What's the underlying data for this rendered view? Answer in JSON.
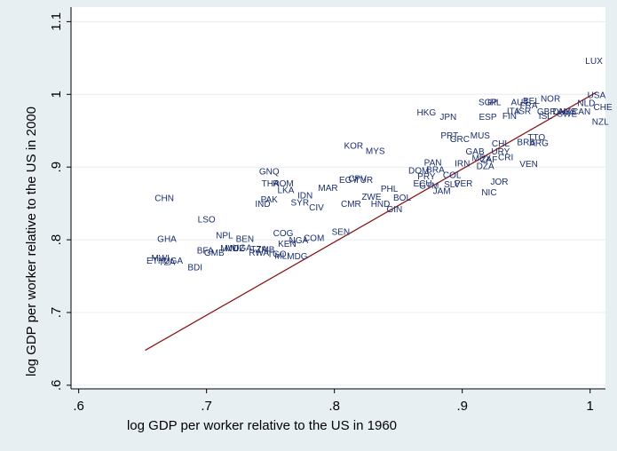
{
  "chart_data": {
    "type": "scatter",
    "xlabel": "log GDP per worker relative to the US in 1960",
    "ylabel": "log GDP per worker relative to the US in 2000",
    "xlim": [
      0.594,
      1.012
    ],
    "ylim": [
      0.595,
      1.12
    ],
    "xticks": [
      0.6,
      0.7,
      0.8,
      0.9,
      1.0
    ],
    "xtick_labels": [
      ".6",
      ".7",
      ".8",
      ".9",
      "1"
    ],
    "yticks": [
      0.6,
      0.7,
      0.8,
      0.9,
      1.0,
      1.1
    ],
    "ytick_labels": [
      ".6",
      ".7",
      ".8",
      ".9",
      "1",
      "1.1"
    ],
    "grid": "horizontal",
    "marker": "country-code labels",
    "points": [
      {
        "label": "LUX",
        "x": 1.003,
        "y": 1.047
      },
      {
        "label": "USA",
        "x": 1.005,
        "y": 1.0
      },
      {
        "label": "CHE",
        "x": 1.01,
        "y": 0.983
      },
      {
        "label": "NLD",
        "x": 0.997,
        "y": 0.989
      },
      {
        "label": "NZL",
        "x": 1.008,
        "y": 0.963
      },
      {
        "label": "NOR",
        "x": 0.969,
        "y": 0.995
      },
      {
        "label": "BEL",
        "x": 0.954,
        "y": 0.992
      },
      {
        "label": "AUT",
        "x": 0.945,
        "y": 0.99
      },
      {
        "label": "FRA",
        "x": 0.952,
        "y": 0.986
      },
      {
        "label": "ITA",
        "x": 0.94,
        "y": 0.978
      },
      {
        "label": "ISR",
        "x": 0.948,
        "y": 0.978
      },
      {
        "label": "GBR",
        "x": 0.966,
        "y": 0.977
      },
      {
        "label": "DNK",
        "x": 0.978,
        "y": 0.977
      },
      {
        "label": "AUS",
        "x": 0.982,
        "y": 0.977
      },
      {
        "label": "CAN",
        "x": 0.993,
        "y": 0.977
      },
      {
        "label": "FIN",
        "x": 0.937,
        "y": 0.971
      },
      {
        "label": "ISL",
        "x": 0.965,
        "y": 0.971
      },
      {
        "label": "SWE",
        "x": 0.982,
        "y": 0.974
      },
      {
        "label": "SGP",
        "x": 0.92,
        "y": 0.99
      },
      {
        "label": "IRL",
        "x": 0.925,
        "y": 0.99
      },
      {
        "label": "HKG",
        "x": 0.872,
        "y": 0.976
      },
      {
        "label": "JPN",
        "x": 0.889,
        "y": 0.97
      },
      {
        "label": "ESP",
        "x": 0.92,
        "y": 0.97
      },
      {
        "label": "PRT",
        "x": 0.89,
        "y": 0.944
      },
      {
        "label": "GRC",
        "x": 0.898,
        "y": 0.939
      },
      {
        "label": "MUS",
        "x": 0.914,
        "y": 0.944
      },
      {
        "label": "TTO",
        "x": 0.958,
        "y": 0.942
      },
      {
        "label": "BRB",
        "x": 0.95,
        "y": 0.935
      },
      {
        "label": "ARG",
        "x": 0.96,
        "y": 0.934
      },
      {
        "label": "CHL",
        "x": 0.93,
        "y": 0.933
      },
      {
        "label": "GAB",
        "x": 0.91,
        "y": 0.922
      },
      {
        "label": "URY",
        "x": 0.93,
        "y": 0.922
      },
      {
        "label": "MEX",
        "x": 0.915,
        "y": 0.913
      },
      {
        "label": "ZAF",
        "x": 0.921,
        "y": 0.911
      },
      {
        "label": "CRI",
        "x": 0.934,
        "y": 0.914
      },
      {
        "label": "DZA",
        "x": 0.918,
        "y": 0.902
      },
      {
        "label": "VEN",
        "x": 0.952,
        "y": 0.905
      },
      {
        "label": "IRN",
        "x": 0.9,
        "y": 0.906
      },
      {
        "label": "KOR",
        "x": 0.815,
        "y": 0.93
      },
      {
        "label": "MYS",
        "x": 0.832,
        "y": 0.923
      },
      {
        "label": "PAN",
        "x": 0.877,
        "y": 0.907
      },
      {
        "label": "DOM",
        "x": 0.866,
        "y": 0.896
      },
      {
        "label": "BRA",
        "x": 0.879,
        "y": 0.897
      },
      {
        "label": "COL",
        "x": 0.892,
        "y": 0.89
      },
      {
        "label": "PRY",
        "x": 0.872,
        "y": 0.888
      },
      {
        "label": "ECU",
        "x": 0.869,
        "y": 0.878
      },
      {
        "label": "GTM",
        "x": 0.874,
        "y": 0.875
      },
      {
        "label": "SLV",
        "x": 0.892,
        "y": 0.877
      },
      {
        "label": "PER",
        "x": 0.901,
        "y": 0.878
      },
      {
        "label": "JOR",
        "x": 0.929,
        "y": 0.881
      },
      {
        "label": "JAM",
        "x": 0.884,
        "y": 0.868
      },
      {
        "label": "NIC",
        "x": 0.921,
        "y": 0.866
      },
      {
        "label": "EGY",
        "x": 0.811,
        "y": 0.883
      },
      {
        "label": "CPV",
        "x": 0.818,
        "y": 0.885
      },
      {
        "label": "TUR",
        "x": 0.823,
        "y": 0.883
      },
      {
        "label": "MAR",
        "x": 0.795,
        "y": 0.872
      },
      {
        "label": "PHL",
        "x": 0.843,
        "y": 0.871
      },
      {
        "label": "ZWE",
        "x": 0.829,
        "y": 0.86
      },
      {
        "label": "BOL",
        "x": 0.853,
        "y": 0.859
      },
      {
        "label": "CMR",
        "x": 0.813,
        "y": 0.85
      },
      {
        "label": "HND",
        "x": 0.836,
        "y": 0.85
      },
      {
        "label": "GIN",
        "x": 0.847,
        "y": 0.843
      },
      {
        "label": "GNQ",
        "x": 0.749,
        "y": 0.895
      },
      {
        "label": "THA",
        "x": 0.75,
        "y": 0.878
      },
      {
        "label": "ROM",
        "x": 0.76,
        "y": 0.878
      },
      {
        "label": "LKA",
        "x": 0.762,
        "y": 0.869
      },
      {
        "label": "IDN",
        "x": 0.777,
        "y": 0.862
      },
      {
        "label": "PAK",
        "x": 0.749,
        "y": 0.856
      },
      {
        "label": "IND",
        "x": 0.744,
        "y": 0.85
      },
      {
        "label": "SYR",
        "x": 0.773,
        "y": 0.852
      },
      {
        "label": "CIV",
        "x": 0.786,
        "y": 0.845
      },
      {
        "label": "CHN",
        "x": 0.667,
        "y": 0.858
      },
      {
        "label": "LSO",
        "x": 0.7,
        "y": 0.829
      },
      {
        "label": "SEN",
        "x": 0.805,
        "y": 0.812
      },
      {
        "label": "NPL",
        "x": 0.714,
        "y": 0.807
      },
      {
        "label": "BEN",
        "x": 0.73,
        "y": 0.802
      },
      {
        "label": "COG",
        "x": 0.76,
        "y": 0.81
      },
      {
        "label": "COM",
        "x": 0.784,
        "y": 0.803
      },
      {
        "label": "NGA",
        "x": 0.772,
        "y": 0.8
      },
      {
        "label": "KEN",
        "x": 0.763,
        "y": 0.795
      },
      {
        "label": "GHA",
        "x": 0.669,
        "y": 0.802
      },
      {
        "label": "UGA",
        "x": 0.728,
        "y": 0.79
      },
      {
        "label": "MWI",
        "x": 0.718,
        "y": 0.789
      },
      {
        "label": "MOZ",
        "x": 0.722,
        "y": 0.789
      },
      {
        "label": "BFA",
        "x": 0.699,
        "y": 0.786
      },
      {
        "label": "GMB",
        "x": 0.706,
        "y": 0.783
      },
      {
        "label": "TZA",
        "x": 0.741,
        "y": 0.788
      },
      {
        "label": "ZMB",
        "x": 0.746,
        "y": 0.787
      },
      {
        "label": "RWA",
        "x": 0.741,
        "y": 0.783
      },
      {
        "label": "TGO",
        "x": 0.755,
        "y": 0.781
      },
      {
        "label": "MLI",
        "x": 0.759,
        "y": 0.779
      },
      {
        "label": "MDG",
        "x": 0.771,
        "y": 0.778
      },
      {
        "label": "MWI",
        "x": 0.664,
        "y": 0.776
      },
      {
        "label": "ETH",
        "x": 0.66,
        "y": 0.772
      },
      {
        "label": "TZA",
        "x": 0.669,
        "y": 0.77
      },
      {
        "label": "UGA",
        "x": 0.674,
        "y": 0.772
      },
      {
        "label": "BDI",
        "x": 0.691,
        "y": 0.763
      }
    ],
    "fit_line": {
      "x": [
        0.652,
        1.005
      ],
      "y": [
        0.648,
        1.003
      ],
      "color": "#8b1a1a"
    },
    "colors": {
      "background": "#e8eff3",
      "plot_area": "#ffffff",
      "labels": "#1a2e6e",
      "fit": "#8b1a1a",
      "grid": "#e6ecef"
    }
  }
}
